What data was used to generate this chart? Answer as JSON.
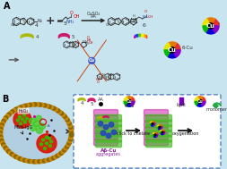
{
  "fig_width": 2.48,
  "fig_height": 1.89,
  "dpi": 100,
  "panel_a_bg": "#c8e4ef",
  "panel_b_bg": "#ddeeff",
  "overall_bg": "#c8e4ef",
  "colors_pie": [
    "#e63030",
    "#e67a00",
    "#e6e600",
    "#00bb00",
    "#0000dd",
    "#8800cc"
  ],
  "yellow_banana": "#a8b800",
  "pink_banana": "#cc1166",
  "rainbow_banana": [
    "#ff4400",
    "#ff9900",
    "#ffee00",
    "#44cc00",
    "#0044ff",
    "#cc00cc"
  ],
  "cell_membrane_color1": "#cc8800",
  "cell_membrane_color2": "#886600",
  "cell_bg": "#aac8e0",
  "ladybug_red": "#cc1100",
  "ladybug_green": "#226600",
  "dashed_box_color": "#4477bb",
  "fibril_green": "#44bb22",
  "fibril_magenta": "#cc22aa",
  "arrow_color": "#222222",
  "text_dark": "#111111",
  "text_red": "#cc0000",
  "text_blue": "#2244aa",
  "text_purple": "#882299",
  "cu_blue": "#3355cc"
}
